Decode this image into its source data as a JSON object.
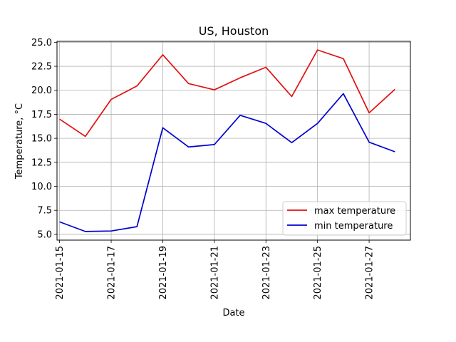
{
  "chart_data": {
    "type": "line",
    "title": "US, Houston",
    "xlabel": "Date",
    "ylabel": "Temperature, °C",
    "x": [
      "2021-01-15",
      "2021-01-16",
      "2021-01-17",
      "2021-01-18",
      "2021-01-19",
      "2021-01-20",
      "2021-01-21",
      "2021-01-22",
      "2021-01-23",
      "2021-01-24",
      "2021-01-25",
      "2021-01-26",
      "2021-01-27",
      "2021-01-28"
    ],
    "x_ticks": [
      "2021-01-15",
      "2021-01-17",
      "2021-01-19",
      "2021-01-21",
      "2021-01-23",
      "2021-01-25",
      "2021-01-27"
    ],
    "y_ticks": [
      "5.0",
      "7.5",
      "10.0",
      "12.5",
      "15.0",
      "17.5",
      "20.0",
      "22.5",
      "25.0"
    ],
    "ylim": [
      4.4,
      25.1
    ],
    "xlim": [
      "2021-01-14.9",
      "2021-01-28.6"
    ],
    "grid": true,
    "legend_position": "lower-right",
    "series": [
      {
        "name": "max temperature",
        "color": "#e01010",
        "values": [
          17.0,
          15.2,
          19.05,
          20.45,
          23.7,
          20.7,
          20.05,
          21.3,
          22.4,
          19.35,
          24.2,
          23.3,
          17.65,
          20.1
        ]
      },
      {
        "name": "min temperature",
        "color": "#0000d0",
        "values": [
          6.3,
          5.3,
          5.35,
          5.8,
          16.1,
          14.1,
          14.35,
          17.4,
          16.55,
          14.55,
          16.55,
          19.65,
          14.6,
          13.6
        ]
      }
    ]
  }
}
